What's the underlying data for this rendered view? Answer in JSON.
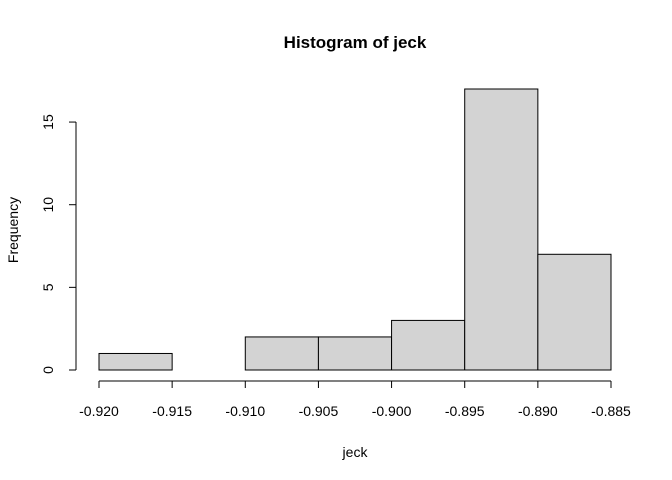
{
  "chart_data": {
    "type": "bar",
    "title": "Histogram of jeck",
    "xlabel": "jeck",
    "ylabel": "Frequency",
    "bins": [
      {
        "start": -0.92,
        "end": -0.915,
        "count": 1
      },
      {
        "start": -0.915,
        "end": -0.91,
        "count": 0
      },
      {
        "start": -0.91,
        "end": -0.905,
        "count": 2
      },
      {
        "start": -0.905,
        "end": -0.9,
        "count": 2
      },
      {
        "start": -0.9,
        "end": -0.895,
        "count": 3
      },
      {
        "start": -0.895,
        "end": -0.89,
        "count": 17
      },
      {
        "start": -0.89,
        "end": -0.885,
        "count": 7
      }
    ],
    "xlim": [
      -0.92,
      -0.885
    ],
    "ylim": [
      0,
      17
    ],
    "x_ticks": [
      -0.92,
      -0.915,
      -0.91,
      -0.905,
      -0.9,
      -0.895,
      -0.89,
      -0.885
    ],
    "x_tick_labels": [
      "-0.920",
      "-0.915",
      "-0.910",
      "-0.905",
      "-0.900",
      "-0.895",
      "-0.890",
      "-0.885"
    ],
    "y_ticks": [
      0,
      5,
      10,
      15
    ],
    "y_tick_labels": [
      "0",
      "5",
      "10",
      "15"
    ],
    "grid": false,
    "bar_color": "#d3d3d3",
    "edge_color": "#000000"
  }
}
